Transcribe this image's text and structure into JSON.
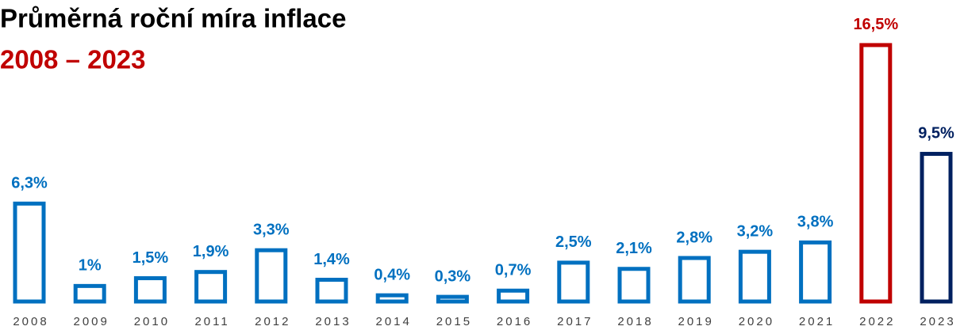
{
  "chart_data": {
    "type": "bar",
    "title": "Průměrná roční míra inflace",
    "subtitle": "2008 – 2023",
    "categories": [
      "2008",
      "2009",
      "2010",
      "2011",
      "2012",
      "2013",
      "2014",
      "2015",
      "2016",
      "2017",
      "2018",
      "2019",
      "2020",
      "2021",
      "2022",
      "2023"
    ],
    "values": [
      6.3,
      1,
      1.5,
      1.9,
      3.3,
      1.4,
      0.4,
      0.3,
      0.7,
      2.5,
      2.1,
      2.8,
      3.2,
      3.8,
      16.5,
      9.5
    ],
    "value_labels": [
      "6,3%",
      "1%",
      "1,5%",
      "1,9%",
      "3,3%",
      "1,4%",
      "0,4%",
      "0,3%",
      "0,7%",
      "2,5%",
      "2,1%",
      "2,8%",
      "3,2%",
      "3,8%",
      "16,5%",
      "9,5%"
    ],
    "colors": [
      "#0070c0",
      "#0070c0",
      "#0070c0",
      "#0070c0",
      "#0070c0",
      "#0070c0",
      "#0070c0",
      "#0070c0",
      "#0070c0",
      "#0070c0",
      "#0070c0",
      "#0070c0",
      "#0070c0",
      "#0070c0",
      "#c00000",
      "#002060"
    ]
  }
}
